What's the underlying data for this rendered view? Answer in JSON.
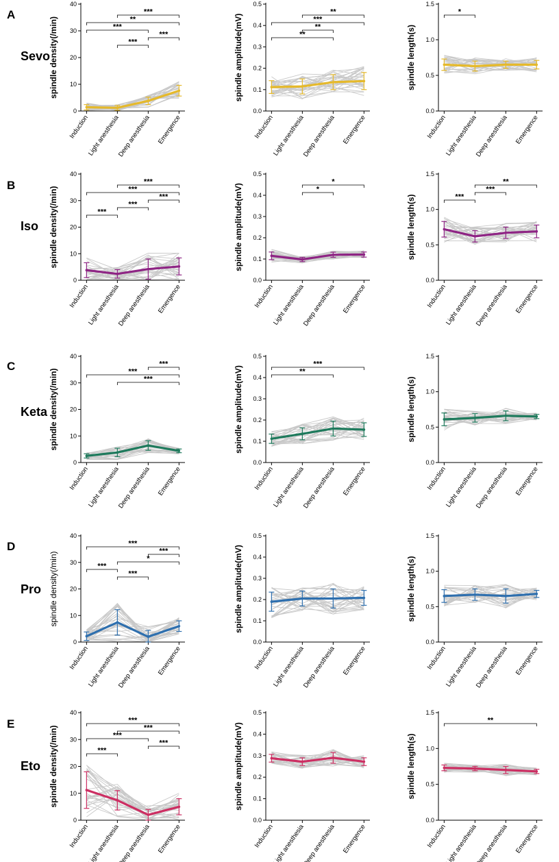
{
  "figure": {
    "x_categories": [
      "Induction",
      "Light anesthesia",
      "Deep anesthesia",
      "Emergence"
    ],
    "rows": [
      {
        "letter": "A",
        "label": "Sevo",
        "color": "#E5B92B"
      },
      {
        "letter": "B",
        "label": "Iso",
        "color": "#8E2484"
      },
      {
        "letter": "C",
        "label": "Keta",
        "color": "#1E7A5C"
      },
      {
        "letter": "D",
        "label": "Pro",
        "color": "#2E6FAE"
      },
      {
        "letter": "E",
        "label": "Eto",
        "color": "#CC2E62"
      }
    ],
    "individual_line_color": "#C8C8C8"
  },
  "chart_data": [
    {
      "id": "A-density",
      "type": "line",
      "row": "Sevo",
      "ylabel": "spindle density(/min)",
      "ylim": [
        0,
        40
      ],
      "yticks": [
        0,
        10,
        20,
        30,
        40
      ],
      "tick_labels": [
        "0",
        "10",
        "20",
        "30",
        "40"
      ],
      "categories": [
        "Induction",
        "Light anesthesia",
        "Deep anesthesia",
        "Emergence"
      ],
      "mean": [
        1.4,
        1.2,
        3.8,
        7.6
      ],
      "error": [
        1.0,
        0.9,
        1.4,
        2.0
      ],
      "significance": [
        {
          "from": 1,
          "to": 3,
          "label": "***"
        },
        {
          "from": 0,
          "to": 3,
          "label": "**"
        },
        {
          "from": 0,
          "to": 2,
          "label": "***"
        },
        {
          "from": 2,
          "to": 3,
          "label": "***"
        },
        {
          "from": 1,
          "to": 2,
          "label": "***"
        }
      ]
    },
    {
      "id": "A-amplitude",
      "type": "line",
      "row": "Sevo",
      "ylabel": "spindle amplitude(mV)",
      "ylim": [
        0,
        0.5
      ],
      "yticks": [
        0,
        0.1,
        0.2,
        0.3,
        0.4,
        0.5
      ],
      "tick_labels": [
        "0.0",
        "0.1",
        "0.2",
        "0.3",
        "0.4",
        "0.5"
      ],
      "categories": [
        "Induction",
        "Light anesthesia",
        "Deep anesthesia",
        "Emergence"
      ],
      "mean": [
        0.112,
        0.115,
        0.135,
        0.14
      ],
      "error": [
        0.03,
        0.035,
        0.035,
        0.04
      ],
      "significance": [
        {
          "from": 1,
          "to": 3,
          "label": "**"
        },
        {
          "from": 0,
          "to": 3,
          "label": "***"
        },
        {
          "from": 1,
          "to": 2,
          "label": "**"
        },
        {
          "from": 0,
          "to": 2,
          "label": "**"
        }
      ]
    },
    {
      "id": "A-length",
      "type": "line",
      "row": "Sevo",
      "ylabel": "spindle length(s)",
      "ylim": [
        0,
        1.5
      ],
      "yticks": [
        0,
        0.5,
        1.0,
        1.5
      ],
      "tick_labels": [
        "0.0",
        "0.5",
        "1.0",
        "1.5"
      ],
      "categories": [
        "Induction",
        "Light anesthesia",
        "Deep anesthesia",
        "Emergence"
      ],
      "mean": [
        0.65,
        0.63,
        0.65,
        0.65
      ],
      "error": [
        0.08,
        0.07,
        0.05,
        0.06
      ],
      "significance": [
        {
          "from": 0,
          "to": 1,
          "label": "*"
        }
      ]
    },
    {
      "id": "B-density",
      "type": "line",
      "row": "Iso",
      "ylabel": "spindle density(/min)",
      "ylim": [
        0,
        40
      ],
      "yticks": [
        0,
        10,
        20,
        30,
        40
      ],
      "tick_labels": [
        "0",
        "10",
        "20",
        "30",
        "40"
      ],
      "categories": [
        "Induction",
        "Light anesthesia",
        "Deep anesthesia",
        "Emergence"
      ],
      "mean": [
        3.8,
        2.4,
        4.2,
        5.2
      ],
      "error": [
        2.8,
        1.6,
        3.8,
        3.2
      ],
      "significance": [
        {
          "from": 1,
          "to": 3,
          "label": "***"
        },
        {
          "from": 0,
          "to": 3,
          "label": "***"
        },
        {
          "from": 2,
          "to": 3,
          "label": "***"
        },
        {
          "from": 1,
          "to": 2,
          "label": "***"
        },
        {
          "from": 0,
          "to": 1,
          "label": "***"
        }
      ]
    },
    {
      "id": "B-amplitude",
      "type": "line",
      "row": "Iso",
      "ylabel": "spindle amplitude(mV)",
      "ylim": [
        0,
        0.5
      ],
      "yticks": [
        0,
        0.1,
        0.2,
        0.3,
        0.4,
        0.5
      ],
      "tick_labels": [
        "0.0",
        "0.1",
        "0.2",
        "0.3",
        "0.4",
        "0.5"
      ],
      "categories": [
        "Induction",
        "Light anesthesia",
        "Deep anesthesia",
        "Emergence"
      ],
      "mean": [
        0.115,
        0.098,
        0.12,
        0.121
      ],
      "error": [
        0.018,
        0.01,
        0.012,
        0.012
      ],
      "significance": [
        {
          "from": 1,
          "to": 3,
          "label": "*"
        },
        {
          "from": 1,
          "to": 2,
          "label": "*"
        }
      ]
    },
    {
      "id": "B-length",
      "type": "line",
      "row": "Iso",
      "ylabel": "spindle length(s)",
      "ylim": [
        0,
        1.5
      ],
      "yticks": [
        0,
        0.5,
        1.0,
        1.5
      ],
      "tick_labels": [
        "0.0",
        "0.5",
        "1.0",
        "1.5"
      ],
      "categories": [
        "Induction",
        "Light anesthesia",
        "Deep anesthesia",
        "Emergence"
      ],
      "mean": [
        0.72,
        0.62,
        0.67,
        0.69
      ],
      "error": [
        0.11,
        0.08,
        0.08,
        0.09
      ],
      "significance": [
        {
          "from": 1,
          "to": 3,
          "label": "**"
        },
        {
          "from": 1,
          "to": 2,
          "label": "***"
        },
        {
          "from": 0,
          "to": 1,
          "label": "***"
        }
      ]
    },
    {
      "id": "C-density",
      "type": "line",
      "row": "Keta",
      "ylabel": "spindle density(/min)",
      "ylim": [
        0,
        40
      ],
      "yticks": [
        0,
        10,
        20,
        30,
        40
      ],
      "tick_labels": [
        "0",
        "10",
        "20",
        "30",
        "40"
      ],
      "categories": [
        "Induction",
        "Light anesthesia",
        "Deep anesthesia",
        "Emergence"
      ],
      "mean": [
        2.5,
        3.8,
        6.4,
        4.4
      ],
      "error": [
        0.8,
        1.6,
        1.8,
        0.7
      ],
      "significance": [
        {
          "from": 2,
          "to": 3,
          "label": "***"
        },
        {
          "from": 0,
          "to": 3,
          "label": "***"
        },
        {
          "from": 1,
          "to": 3,
          "label": "***"
        }
      ]
    },
    {
      "id": "C-amplitude",
      "type": "line",
      "row": "Keta",
      "ylabel": "spindle amplitude(mV)",
      "ylim": [
        0,
        0.5
      ],
      "yticks": [
        0,
        0.1,
        0.2,
        0.3,
        0.4,
        0.5
      ],
      "tick_labels": [
        "0.0",
        "0.1",
        "0.2",
        "0.3",
        "0.4",
        "0.5"
      ],
      "categories": [
        "Induction",
        "Light anesthesia",
        "Deep anesthesia",
        "Emergence"
      ],
      "mean": [
        0.112,
        0.135,
        0.16,
        0.155
      ],
      "error": [
        0.022,
        0.028,
        0.035,
        0.032
      ],
      "significance": [
        {
          "from": 0,
          "to": 3,
          "label": "***"
        },
        {
          "from": 0,
          "to": 2,
          "label": "**"
        }
      ]
    },
    {
      "id": "C-length",
      "type": "line",
      "row": "Keta",
      "ylabel": "spindle length(s)",
      "ylim": [
        0,
        1.5
      ],
      "yticks": [
        0,
        0.5,
        1.0,
        1.5
      ],
      "tick_labels": [
        "0.0",
        "0.5",
        "1.0",
        "1.5"
      ],
      "categories": [
        "Induction",
        "Light anesthesia",
        "Deep anesthesia",
        "Emergence"
      ],
      "mean": [
        0.61,
        0.63,
        0.66,
        0.65
      ],
      "error": [
        0.09,
        0.06,
        0.07,
        0.03
      ],
      "significance": []
    },
    {
      "id": "D-density",
      "type": "line",
      "row": "Pro",
      "ylabel": "spindle density(/min)",
      "ylabel_bold": false,
      "ylim": [
        0,
        40
      ],
      "yticks": [
        0,
        10,
        20,
        30,
        40
      ],
      "tick_labels": [
        "0",
        "10",
        "20",
        "30",
        "40"
      ],
      "categories": [
        "Induction",
        "Light anesthesia",
        "Deep anesthesia",
        "Emergence"
      ],
      "mean": [
        2.2,
        7.4,
        2.0,
        6.0
      ],
      "error": [
        1.6,
        4.8,
        2.4,
        2.0
      ],
      "significance": [
        {
          "from": 0,
          "to": 3,
          "label": "***"
        },
        {
          "from": 2,
          "to": 3,
          "label": "***"
        },
        {
          "from": 1,
          "to": 3,
          "label": "*"
        },
        {
          "from": 0,
          "to": 1,
          "label": "***"
        },
        {
          "from": 1,
          "to": 2,
          "label": "***"
        }
      ]
    },
    {
      "id": "D-amplitude",
      "type": "line",
      "row": "Pro",
      "ylabel": "spindle amplitude(mV)",
      "ylim": [
        0,
        0.5
      ],
      "yticks": [
        0,
        0.1,
        0.2,
        0.3,
        0.4,
        0.5
      ],
      "tick_labels": [
        "0.0",
        "0.1",
        "0.2",
        "0.3",
        "0.4",
        "0.5"
      ],
      "categories": [
        "Induction",
        "Light anesthesia",
        "Deep anesthesia",
        "Emergence"
      ],
      "mean": [
        0.19,
        0.205,
        0.205,
        0.208
      ],
      "error": [
        0.045,
        0.035,
        0.045,
        0.035
      ],
      "significance": []
    },
    {
      "id": "D-length",
      "type": "line",
      "row": "Pro",
      "ylabel": "spindle length(s)",
      "ylim": [
        0,
        1.5
      ],
      "yticks": [
        0,
        0.5,
        1.0,
        1.5
      ],
      "tick_labels": [
        "0.0",
        "0.5",
        "1.0",
        "1.5"
      ],
      "categories": [
        "Induction",
        "Light anesthesia",
        "Deep anesthesia",
        "Emergence"
      ],
      "mean": [
        0.65,
        0.67,
        0.65,
        0.68
      ],
      "error": [
        0.09,
        0.08,
        0.1,
        0.05
      ],
      "significance": []
    },
    {
      "id": "E-density",
      "type": "line",
      "row": "Eto",
      "ylabel": "spindle density(/min)",
      "ylim": [
        0,
        40
      ],
      "yticks": [
        0,
        10,
        20,
        30,
        40
      ],
      "tick_labels": [
        "0",
        "10",
        "20",
        "30",
        "40"
      ],
      "categories": [
        "Induction",
        "Light anesthesia",
        "Deep anesthesia",
        "Emergence"
      ],
      "mean": [
        11.2,
        7.4,
        2.0,
        5.0
      ],
      "error": [
        6.8,
        3.6,
        2.0,
        3.0
      ],
      "significance": [
        {
          "from": 0,
          "to": 3,
          "label": "***"
        },
        {
          "from": 1,
          "to": 3,
          "label": "***"
        },
        {
          "from": 0,
          "to": 2,
          "label": "***"
        },
        {
          "from": 2,
          "to": 3,
          "label": "***"
        },
        {
          "from": 0,
          "to": 1,
          "label": "***"
        }
      ]
    },
    {
      "id": "E-amplitude",
      "type": "line",
      "row": "Eto",
      "ylabel": "spindle amplitude(mV)",
      "ylim": [
        0,
        0.5
      ],
      "yticks": [
        0,
        0.1,
        0.2,
        0.3,
        0.4,
        0.5
      ],
      "tick_labels": [
        "0.0",
        "0.1",
        "0.2",
        "0.3",
        "0.4",
        "0.5"
      ],
      "categories": [
        "Induction",
        "Light anesthesia",
        "Deep anesthesia",
        "Emergence"
      ],
      "mean": [
        0.288,
        0.272,
        0.29,
        0.272
      ],
      "error": [
        0.018,
        0.018,
        0.025,
        0.018
      ],
      "significance": []
    },
    {
      "id": "E-length",
      "type": "line",
      "row": "Eto",
      "ylabel": "spindle length(s)",
      "ylim": [
        0,
        1.5
      ],
      "yticks": [
        0,
        0.5,
        1.0,
        1.5
      ],
      "tick_labels": [
        "0.0",
        "0.5",
        "1.0",
        "1.5"
      ],
      "categories": [
        "Induction",
        "Light anesthesia",
        "Deep anesthesia",
        "Emergence"
      ],
      "mean": [
        0.73,
        0.72,
        0.7,
        0.68
      ],
      "error": [
        0.04,
        0.03,
        0.05,
        0.03
      ],
      "significance": [
        {
          "from": 0,
          "to": 3,
          "label": "**"
        }
      ]
    }
  ]
}
